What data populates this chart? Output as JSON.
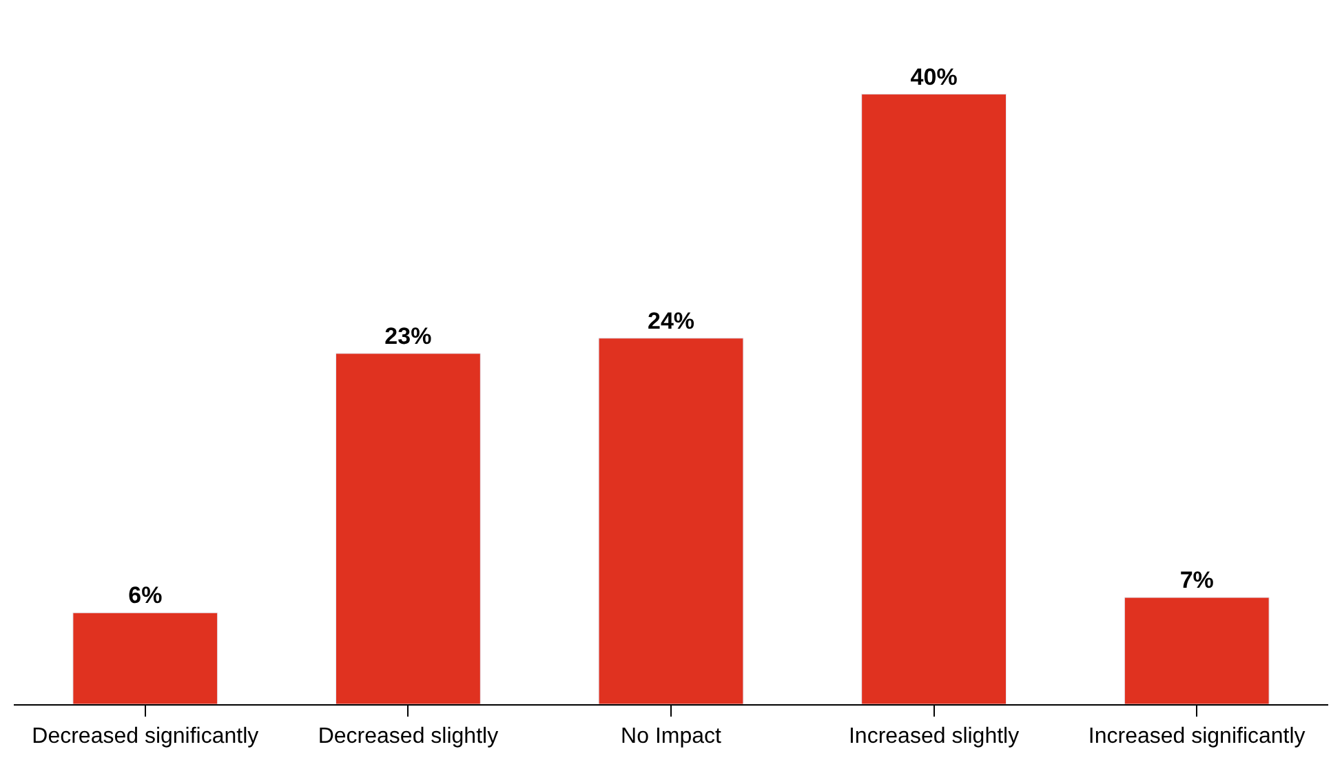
{
  "chart_data": {
    "type": "bar",
    "categories": [
      "Decreased significantly",
      "Decreased slightly",
      "No Impact",
      "Increased slightly",
      "Increased significantly"
    ],
    "values": [
      6,
      23,
      24,
      40,
      7
    ],
    "value_labels": [
      "6%",
      "23%",
      "24%",
      "40%",
      "7%"
    ],
    "color": "#e03220"
  }
}
